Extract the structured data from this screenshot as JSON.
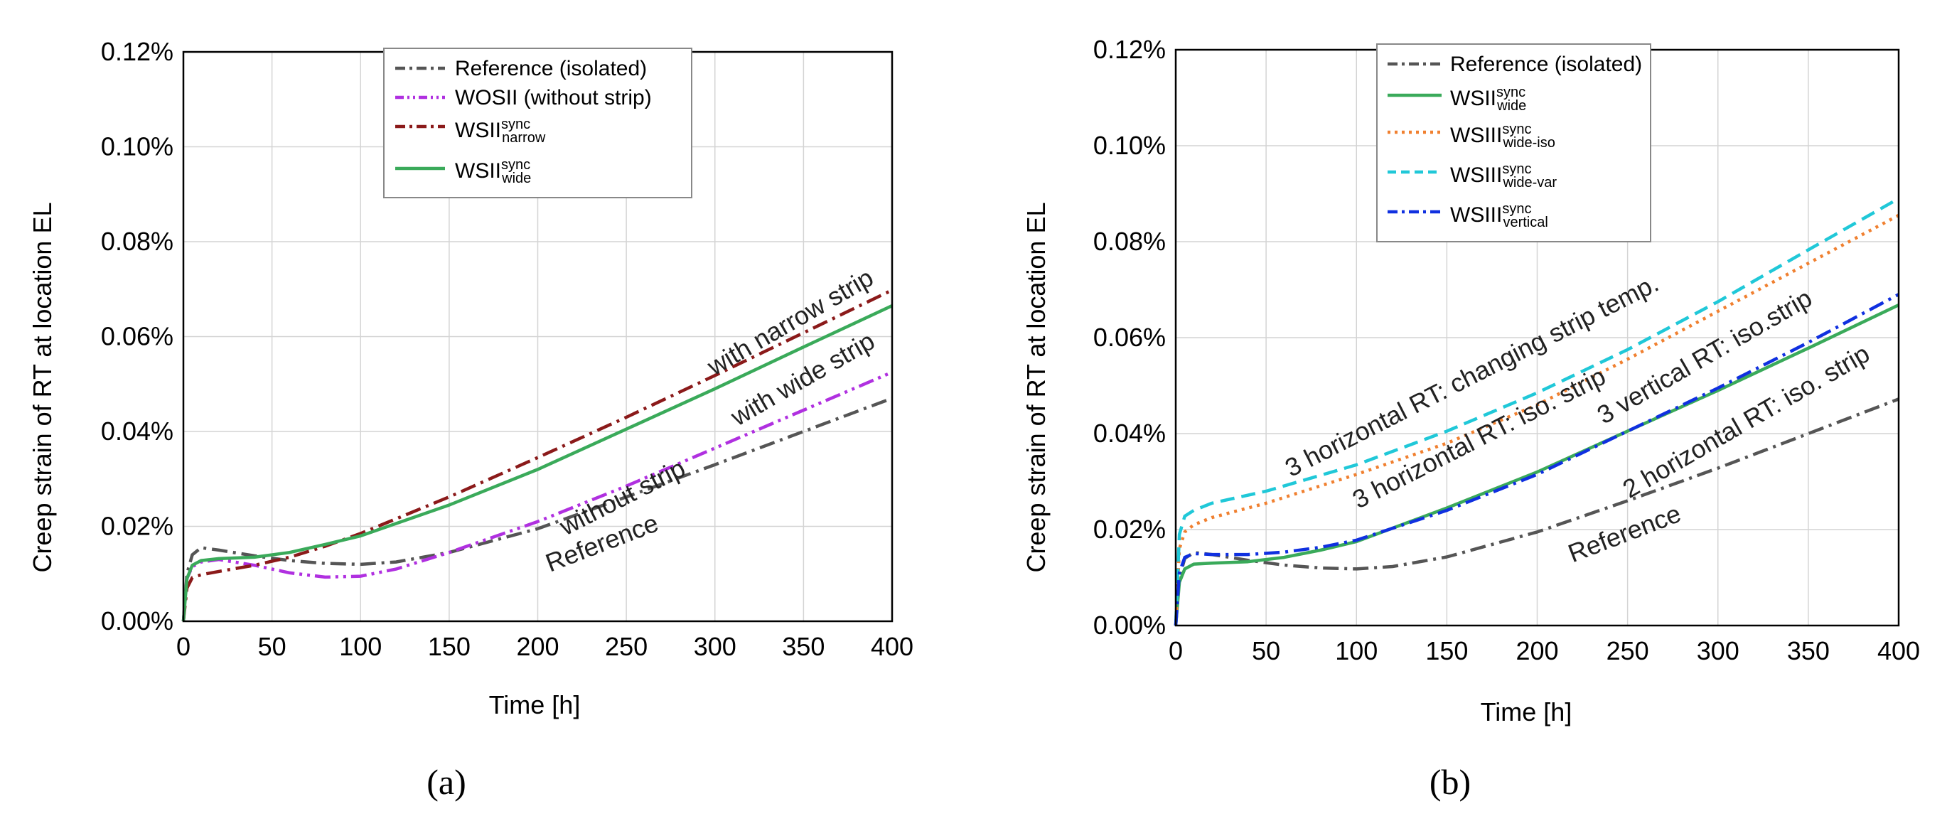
{
  "chart_data": [
    {
      "type": "line",
      "panel_label": "(a)",
      "xlabel": "Time [h]",
      "ylabel": "Creep strain of RT at location EL",
      "xlim": [
        0,
        400
      ],
      "ylim": [
        0,
        0.12
      ],
      "xticks": [
        "0",
        "50",
        "100",
        "150",
        "200",
        "250",
        "300",
        "350",
        "400"
      ],
      "yticks": [
        "0.00%",
        "0.02%",
        "0.04%",
        "0.06%",
        "0.08%",
        "0.10%",
        "0.12%"
      ],
      "legend_position": "top",
      "series": [
        {
          "name": "Reference (isolated)",
          "label_main": "Reference (isolated)",
          "label_sup": "",
          "label_sub": "",
          "color": "#555555",
          "dash": "dashdot",
          "x": [
            0,
            2,
            5,
            10,
            20,
            40,
            60,
            80,
            100,
            120,
            150,
            200,
            250,
            300,
            350,
            400
          ],
          "y": [
            0,
            0.01,
            0.014,
            0.0155,
            0.015,
            0.0138,
            0.0128,
            0.0122,
            0.012,
            0.0125,
            0.0145,
            0.0195,
            0.0262,
            0.033,
            0.04,
            0.047
          ]
        },
        {
          "name": "WOSII (without strip)",
          "label_main": "WOSII (without strip)",
          "label_sup": "",
          "label_sub": "",
          "color": "#b030e0",
          "dash": "dashdotdot",
          "x": [
            0,
            2,
            5,
            10,
            20,
            40,
            60,
            80,
            100,
            120,
            150,
            200,
            250,
            300,
            350,
            400
          ],
          "y": [
            0,
            0.009,
            0.0115,
            0.0125,
            0.013,
            0.0118,
            0.0102,
            0.0093,
            0.0095,
            0.011,
            0.0145,
            0.021,
            0.0285,
            0.0365,
            0.0445,
            0.0525
          ]
        },
        {
          "name": "WSII narrow sync",
          "label_main": "WSII",
          "label_sup": "sync",
          "label_sub": "narrow",
          "color": "#8b1a1a",
          "dash": "dashdot",
          "x": [
            0,
            2,
            5,
            10,
            20,
            40,
            60,
            80,
            100,
            150,
            200,
            250,
            300,
            350,
            400
          ],
          "y": [
            0,
            0.007,
            0.0092,
            0.0098,
            0.0105,
            0.0118,
            0.0135,
            0.0158,
            0.0185,
            0.0262,
            0.0345,
            0.043,
            0.0518,
            0.0608,
            0.0698
          ]
        },
        {
          "name": "WSII wide sync",
          "label_main": "WSII",
          "label_sup": "sync",
          "label_sub": "wide",
          "color": "#3aaa5a",
          "dash": "solid",
          "x": [
            0,
            2,
            5,
            10,
            20,
            40,
            60,
            80,
            100,
            150,
            200,
            250,
            300,
            350,
            400
          ],
          "y": [
            0,
            0.009,
            0.0118,
            0.0128,
            0.0132,
            0.0135,
            0.0145,
            0.0162,
            0.018,
            0.0245,
            0.032,
            0.0405,
            0.049,
            0.0578,
            0.0665
          ]
        }
      ],
      "annotations": [
        {
          "text": "with narrow strip",
          "x": 345,
          "y": 0.0615,
          "angle": -30
        },
        {
          "text": "with wide strip",
          "x": 352,
          "y": 0.0495,
          "angle": -30
        },
        {
          "text": "without strip",
          "x": 250,
          "y": 0.0245,
          "angle": -27
        },
        {
          "text": "Reference",
          "x": 238,
          "y": 0.0148,
          "angle": -21
        }
      ]
    },
    {
      "type": "line",
      "panel_label": "(b)",
      "xlabel": "Time [h]",
      "ylabel": "Creep strain of RT at location EL",
      "xlim": [
        0,
        400
      ],
      "ylim": [
        0,
        0.12
      ],
      "xticks": [
        "0",
        "50",
        "100",
        "150",
        "200",
        "250",
        "300",
        "350",
        "400"
      ],
      "yticks": [
        "0.00%",
        "0.02%",
        "0.04%",
        "0.06%",
        "0.08%",
        "0.10%",
        "0.12%"
      ],
      "legend_position": "top",
      "series": [
        {
          "name": "Reference (isolated)",
          "label_main": "Reference (isolated)",
          "label_sup": "",
          "label_sub": "",
          "color": "#555555",
          "dash": "dashdot",
          "x": [
            0,
            2,
            5,
            10,
            20,
            40,
            60,
            80,
            100,
            120,
            150,
            200,
            250,
            300,
            350,
            400
          ],
          "y": [
            0,
            0.01,
            0.014,
            0.0152,
            0.0148,
            0.0136,
            0.0126,
            0.012,
            0.0118,
            0.0123,
            0.0143,
            0.0195,
            0.026,
            0.0328,
            0.04,
            0.0472
          ]
        },
        {
          "name": "WSII wide sync",
          "label_main": "WSII",
          "label_sup": "sync",
          "label_sub": "wide",
          "color": "#3aaa5a",
          "dash": "solid",
          "x": [
            0,
            2,
            5,
            10,
            20,
            40,
            60,
            80,
            100,
            150,
            200,
            250,
            300,
            350,
            400
          ],
          "y": [
            0,
            0.009,
            0.0118,
            0.0128,
            0.013,
            0.0133,
            0.0142,
            0.0157,
            0.0175,
            0.0245,
            0.032,
            0.0405,
            0.049,
            0.0578,
            0.0668
          ]
        },
        {
          "name": "WSIII wide-iso sync",
          "label_main": "WSIII",
          "label_sup": "sync",
          "label_sub": "wide-iso",
          "color": "#f08030",
          "dash": "dotted",
          "x": [
            0,
            2,
            5,
            10,
            20,
            50,
            100,
            150,
            200,
            250,
            300,
            350,
            400
          ],
          "y": [
            0,
            0.016,
            0.0195,
            0.021,
            0.0225,
            0.0255,
            0.0315,
            0.038,
            0.046,
            0.0555,
            0.0655,
            0.0755,
            0.0855
          ]
        },
        {
          "name": "WSIII wide-var sync",
          "label_main": "WSIII",
          "label_sup": "sync",
          "label_sub": "wide-var",
          "color": "#20c8d8",
          "dash": "dashed",
          "x": [
            0,
            2,
            5,
            10,
            20,
            50,
            100,
            150,
            200,
            250,
            300,
            350,
            400
          ],
          "y": [
            0,
            0.019,
            0.0228,
            0.024,
            0.0255,
            0.028,
            0.0335,
            0.0405,
            0.0485,
            0.0575,
            0.0675,
            0.0783,
            0.089
          ]
        },
        {
          "name": "WSIII vertical sync",
          "label_main": "WSIII",
          "label_sup": "sync",
          "label_sub": "vertical",
          "color": "#1030e0",
          "dash": "dashdot",
          "x": [
            0,
            2,
            5,
            10,
            20,
            40,
            60,
            80,
            100,
            150,
            200,
            250,
            300,
            350,
            400
          ],
          "y": [
            0,
            0.011,
            0.0142,
            0.015,
            0.0148,
            0.0148,
            0.0153,
            0.0163,
            0.0178,
            0.024,
            0.0315,
            0.0405,
            0.0495,
            0.059,
            0.069
          ]
        }
      ],
      "annotations": [
        {
          "text": "3 horizontal RT: changing strip temp.",
          "x": 166,
          "y": 0.0505,
          "angle": -27
        },
        {
          "text": "3 horizontal RT: iso. strip",
          "x": 170,
          "y": 0.0375,
          "angle": -27
        },
        {
          "text": "3 vertical RT: iso.strip",
          "x": 295,
          "y": 0.0545,
          "angle": -30
        },
        {
          "text": "2 horizontal RT: iso. strip",
          "x": 318,
          "y": 0.041,
          "angle": -30
        },
        {
          "text": "Reference",
          "x": 250,
          "y": 0.0175,
          "angle": -21
        }
      ]
    }
  ]
}
